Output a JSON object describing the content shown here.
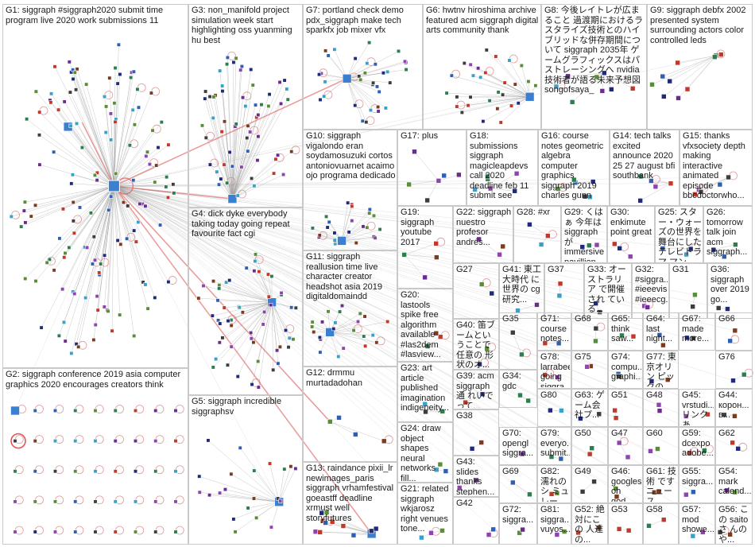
{
  "groups": [
    {
      "id": "G1",
      "label": "G1: siggraph #siggraph2020 submit time program live 2020 work submissions 11",
      "pos": [
        3,
        5,
        234,
        458
      ],
      "nodes": 140
    },
    {
      "id": "G2",
      "label": "G2: siggraph conference 2019 asia computer graphics 2020 encourages creators think",
      "pos": [
        3,
        463,
        234,
        222
      ],
      "nodes": 45
    },
    {
      "id": "G3",
      "label": "G3: non_manifold project simulation week start highlighting oss yuanming hu best",
      "pos": [
        237,
        5,
        144,
        256
      ],
      "nodes": 60
    },
    {
      "id": "G4",
      "label": "G4: dick dyke everybody taking today going repeat favourite fact cgi",
      "pos": [
        237,
        261,
        144,
        236
      ],
      "nodes": 55
    },
    {
      "id": "G5",
      "label": "G5: siggraph incredible siggraphsv",
      "pos": [
        237,
        497,
        144,
        188
      ],
      "nodes": 22
    },
    {
      "id": "G7",
      "label": "G7: portland check demo pdx_siggraph make tech sparkfx job mixer vfx",
      "pos": [
        381,
        5,
        151,
        158
      ],
      "nodes": 34
    },
    {
      "id": "G6",
      "label": "G6: hwtnv hiroshima archive featured acm siggraph digital arts community thank",
      "pos": [
        532,
        5,
        149,
        158
      ],
      "nodes": 30
    },
    {
      "id": "G8",
      "label": "G8: 今後レイトレが広まること 過渡期におけるラスタライズ技術とのハイブリッドな併存期間について siggraph 2035年 ゲームグラフィックスはパストレーシングへ nvidia 技術者が語る未来予想図 songofsaya_",
      "pos": [
        681,
        5,
        133,
        158
      ],
      "nodes": 8
    },
    {
      "id": "G9",
      "label": "G9: siggraph debfx 2002 presented system surrounding actors color controlled leds",
      "pos": [
        814,
        5,
        133,
        158
      ],
      "nodes": 10
    },
    {
      "id": "G10",
      "label": "G10: siggraph vigalondo eran soydamosuzuki cortos antoniovuarnet acaimo ojo programa dedicado",
      "pos": [
        381,
        163,
        119,
        152
      ],
      "nodes": 25
    },
    {
      "id": "G17",
      "label": "G17: plus",
      "pos": [
        500,
        163,
        87,
        96
      ],
      "nodes": 6
    },
    {
      "id": "G18",
      "label": "G18: submissions siggraph magicleapdevs call 2020 deadline feb 11 submit see",
      "pos": [
        587,
        163,
        90,
        96
      ],
      "nodes": 6
    },
    {
      "id": "G16",
      "label": "G16: course notes geometric algebra computer graphics siggraph 2019 charles gunn",
      "pos": [
        677,
        163,
        90,
        96
      ],
      "nodes": 6
    },
    {
      "id": "G14",
      "label": "G14: tech talks excited announce 2020 25 27 august bfi southbank",
      "pos": [
        767,
        163,
        88,
        96
      ],
      "nodes": 5
    },
    {
      "id": "G15",
      "label": "G15: thanks vfxsociety depth making interactive animated episode bbcdoctorwho...",
      "pos": [
        855,
        163,
        92,
        96
      ],
      "nodes": 5
    },
    {
      "id": "G19",
      "label": "G19: siggraph youtube 2017",
      "pos": [
        500,
        259,
        70,
        104
      ],
      "nodes": 4
    },
    {
      "id": "G22",
      "label": "G22: siggraph nuestro profesor andrés...",
      "pos": [
        570,
        259,
        76,
        72
      ],
      "nodes": 3
    },
    {
      "id": "G28",
      "label": "G28: #xr",
      "pos": [
        646,
        259,
        60,
        72
      ],
      "nodes": 3
    },
    {
      "id": "G29",
      "label": "G29: くはぁ 今年は siggraphが immersive pavillion...",
      "pos": [
        706,
        259,
        58,
        72
      ],
      "nodes": 3
    },
    {
      "id": "G30",
      "label": "G30: enkimute point great",
      "pos": [
        764,
        259,
        60,
        72
      ],
      "nodes": 3
    },
    {
      "id": "G25",
      "label": "G25: スター・ウォーズの世界を舞台にしたテレビドラマ マンダ...",
      "pos": [
        824,
        259,
        61,
        72
      ],
      "nodes": 3
    },
    {
      "id": "G26",
      "label": "G26: tomorrow talk join acm siggraph...",
      "pos": [
        885,
        259,
        62,
        72
      ],
      "nodes": 3
    },
    {
      "id": "G11",
      "label": "G11: siggraph reallusion time live character creator headshot asia 2019 digitaldomaindd",
      "pos": [
        381,
        315,
        119,
        146
      ],
      "nodes": 24
    },
    {
      "id": "G27",
      "label": "G27",
      "pos": [
        570,
        331,
        58,
        70
      ],
      "nodes": 2
    },
    {
      "id": "G41",
      "label": "G41: 東工大時代 に世界の cg研究...",
      "pos": [
        628,
        331,
        57,
        70
      ],
      "nodes": 2
    },
    {
      "id": "G37",
      "label": "G37",
      "pos": [
        685,
        331,
        50,
        70
      ],
      "nodes": 2
    },
    {
      "id": "G33",
      "label": "G33: オーストラリア で開催され ている...",
      "pos": [
        735,
        331,
        60,
        70
      ],
      "nodes": 2
    },
    {
      "id": "G32",
      "label": "G32: #siggra... #ieeevis #ieeecg...",
      "pos": [
        795,
        331,
        47,
        70
      ],
      "nodes": 2
    },
    {
      "id": "G31",
      "label": "G31",
      "pos": [
        842,
        331,
        48,
        70
      ],
      "nodes": 2
    },
    {
      "id": "G36",
      "label": "G36: siggraph over 2019 go...",
      "pos": [
        890,
        331,
        57,
        70
      ],
      "nodes": 2
    },
    {
      "id": "G20",
      "label": "G20: lastools spike free algorithm available #las2dem #lasview...",
      "pos": [
        500,
        363,
        70,
        92
      ],
      "nodes": 3
    },
    {
      "id": "G40",
      "label": "G40: 笛ブームということで 任意の 形状のオ...",
      "pos": [
        570,
        401,
        58,
        64
      ],
      "nodes": 2
    },
    {
      "id": "G35",
      "label": "G35",
      "pos": [
        628,
        393,
        48,
        72
      ],
      "nodes": 2
    },
    {
      "id": "G71",
      "label": "G71: course notes...",
      "pos": [
        676,
        393,
        43,
        48
      ],
      "nodes": 2
    },
    {
      "id": "G68",
      "label": "G68",
      "pos": [
        719,
        393,
        46,
        48
      ],
      "nodes": 2
    },
    {
      "id": "G65",
      "label": "G65: think saw...",
      "pos": [
        765,
        393,
        44,
        48
      ],
      "nodes": 2
    },
    {
      "id": "G64",
      "label": "G64: last night...",
      "pos": [
        809,
        393,
        45,
        48
      ],
      "nodes": 2
    },
    {
      "id": "G67",
      "label": "G67: made more...",
      "pos": [
        854,
        393,
        46,
        48
      ],
      "nodes": 2
    },
    {
      "id": "G66",
      "label": "G66",
      "pos": [
        900,
        393,
        47,
        48
      ],
      "nodes": 2
    },
    {
      "id": "G12",
      "label": "G12: drmmu murtadadohan",
      "pos": [
        381,
        461,
        119,
        120
      ],
      "nodes": 4
    },
    {
      "id": "G23",
      "label": "G23: art article published imagination indigeneity...",
      "pos": [
        500,
        455,
        70,
        76
      ],
      "nodes": 3
    },
    {
      "id": "G39",
      "label": "G39: acm siggraph通 れいでって...",
      "pos": [
        570,
        465,
        58,
        50
      ],
      "nodes": 2
    },
    {
      "id": "G34",
      "label": "G34: gdc",
      "pos": [
        628,
        465,
        48,
        48
      ],
      "nodes": 2
    },
    {
      "id": "G78",
      "label": "G78: larrabee going siggra...",
      "pos": [
        676,
        441,
        43,
        48
      ],
      "nodes": 2
    },
    {
      "id": "G75",
      "label": "G75",
      "pos": [
        719,
        441,
        46,
        48
      ],
      "nodes": 2
    },
    {
      "id": "G74",
      "label": "G74: compu... graphi...",
      "pos": [
        765,
        441,
        44,
        48
      ],
      "nodes": 2
    },
    {
      "id": "G77",
      "label": "G77: 東京オリン ピックの...",
      "pos": [
        809,
        441,
        45,
        48
      ],
      "nodes": 2
    },
    {
      "id": "G76",
      "label": "G76",
      "pos": [
        900,
        441,
        47,
        48
      ],
      "nodes": 2
    },
    {
      "id": "G80",
      "label": "G80",
      "pos": [
        676,
        489,
        43,
        48
      ],
      "nodes": 2
    },
    {
      "id": "G63",
      "label": "G63: ゲーム会 社プ...",
      "pos": [
        719,
        489,
        46,
        48
      ],
      "nodes": 2
    },
    {
      "id": "G51",
      "label": "G51",
      "pos": [
        765,
        489,
        44,
        48
      ],
      "nodes": 2
    },
    {
      "id": "G48",
      "label": "G48",
      "pos": [
        809,
        489,
        45,
        48
      ],
      "nodes": 2
    },
    {
      "id": "G45",
      "label": "G45: vrstudi... リンクあ...",
      "pos": [
        854,
        489,
        46,
        48
      ],
      "nodes": 2
    },
    {
      "id": "G44",
      "label": "G44: корон... в...",
      "pos": [
        900,
        489,
        47,
        48
      ],
      "nodes": 2
    },
    {
      "id": "G38",
      "label": "G38",
      "pos": [
        570,
        515,
        58,
        58
      ],
      "nodes": 2
    },
    {
      "id": "G24",
      "label": "G24: draw object shapes neural networks fill...",
      "pos": [
        500,
        531,
        70,
        76
      ],
      "nodes": 3
    },
    {
      "id": "G70",
      "label": "G70: opengl siggra...",
      "pos": [
        628,
        537,
        48,
        48
      ],
      "nodes": 2
    },
    {
      "id": "G79",
      "label": "G79: everyo... submit...",
      "pos": [
        676,
        537,
        43,
        48
      ],
      "nodes": 2
    },
    {
      "id": "G50",
      "label": "G50",
      "pos": [
        719,
        537,
        46,
        48
      ],
      "nodes": 2
    },
    {
      "id": "G47",
      "label": "G47",
      "pos": [
        765,
        537,
        44,
        48
      ],
      "nodes": 2
    },
    {
      "id": "G60",
      "label": "G60",
      "pos": [
        809,
        537,
        45,
        48
      ],
      "nodes": 2
    },
    {
      "id": "G59",
      "label": "G59: dcexpo adobe...",
      "pos": [
        854,
        537,
        46,
        48
      ],
      "nodes": 2
    },
    {
      "id": "G62",
      "label": "G62",
      "pos": [
        900,
        537,
        47,
        48
      ],
      "nodes": 2
    },
    {
      "id": "G43",
      "label": "G43: slides thanks stephen...",
      "pos": [
        570,
        573,
        58,
        52
      ],
      "nodes": 2
    },
    {
      "id": "G13",
      "label": "G13: raindance pixii_lr newimages_paris siggraph vrhamfestival goeastff deadline xrmust well storyfutures",
      "pos": [
        381,
        581,
        119,
        104
      ],
      "nodes": 12
    },
    {
      "id": "G21",
      "label": "G21: related siggraph wkjarosz right venues tone...",
      "pos": [
        500,
        607,
        70,
        78
      ],
      "nodes": 3
    },
    {
      "id": "G69",
      "label": "G69",
      "pos": [
        628,
        585,
        48,
        48
      ],
      "nodes": 2
    },
    {
      "id": "G82",
      "label": "G82: 濡れのシ ミュレー...",
      "pos": [
        676,
        585,
        43,
        48
      ],
      "nodes": 2
    },
    {
      "id": "G49",
      "label": "G49",
      "pos": [
        719,
        585,
        46,
        48
      ],
      "nodes": 2
    },
    {
      "id": "G46",
      "label": "G46: googles oh god...",
      "pos": [
        765,
        585,
        44,
        48
      ],
      "nodes": 2
    },
    {
      "id": "G61",
      "label": "G61: 技 術 です ニュース...",
      "pos": [
        809,
        585,
        45,
        48
      ],
      "nodes": 2
    },
    {
      "id": "G55",
      "label": "G55: siggra...",
      "pos": [
        854,
        585,
        46,
        48
      ],
      "nodes": 2
    },
    {
      "id": "G54",
      "label": "G54: mark calend...",
      "pos": [
        900,
        585,
        47,
        48
      ],
      "nodes": 2
    },
    {
      "id": "G42",
      "label": "G42",
      "pos": [
        570,
        625,
        58,
        60
      ],
      "nodes": 2
    },
    {
      "id": "G72",
      "label": "G72: siggra...",
      "pos": [
        628,
        633,
        48,
        52
      ],
      "nodes": 2
    },
    {
      "id": "G81",
      "label": "G81: siggra... vuyos...",
      "pos": [
        676,
        633,
        43,
        52
      ],
      "nodes": 2
    },
    {
      "id": "G52",
      "label": "G52: 絶 対にこの 人達の...",
      "pos": [
        719,
        633,
        46,
        52
      ],
      "nodes": 2
    },
    {
      "id": "G53",
      "label": "G53",
      "pos": [
        765,
        633,
        44,
        52
      ],
      "nodes": 2
    },
    {
      "id": "G58",
      "label": "G58",
      "pos": [
        809,
        633,
        45,
        52
      ],
      "nodes": 2
    },
    {
      "id": "G57",
      "label": "G57: mod showe...",
      "pos": [
        854,
        633,
        46,
        52
      ],
      "nodes": 2
    },
    {
      "id": "G56",
      "label": "G56: この saitoさ んのや...",
      "pos": [
        900,
        633,
        47,
        52
      ],
      "nodes": 2
    }
  ],
  "colors": {
    "border": "#c9c9c9",
    "edge": "#9a9a9a",
    "edge_highlight": "#e05555",
    "loop": "#d98080",
    "hub": "#3b7fd1",
    "node_fill": [
      "#1f2a7a",
      "#2f5fb3",
      "#6a2c8f",
      "#2e7d4f",
      "#3aa0c8",
      "#7a3b1e",
      "#3d3d3d",
      "#c0392b",
      "#5b8c3a",
      "#8e44ad"
    ]
  }
}
